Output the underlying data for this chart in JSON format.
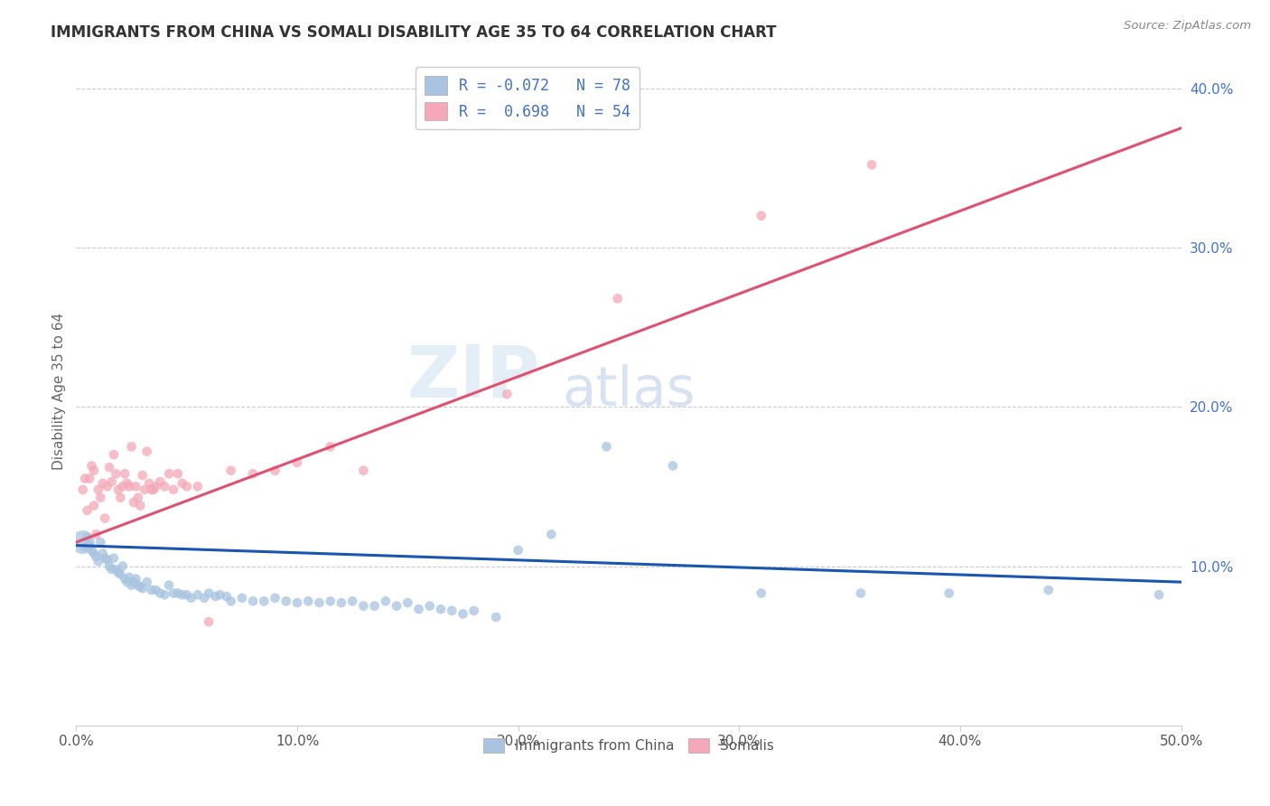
{
  "title": "IMMIGRANTS FROM CHINA VS SOMALI DISABILITY AGE 35 TO 64 CORRELATION CHART",
  "source": "Source: ZipAtlas.com",
  "ylabel": "Disability Age 35 to 64",
  "xlim": [
    0.0,
    0.5
  ],
  "ylim": [
    0.0,
    0.42
  ],
  "xticks": [
    0.0,
    0.1,
    0.2,
    0.3,
    0.4,
    0.5
  ],
  "xticklabels": [
    "0.0%",
    "10.0%",
    "20.0%",
    "30.0%",
    "40.0%",
    "50.0%"
  ],
  "yticks": [
    0.1,
    0.2,
    0.3,
    0.4
  ],
  "yticklabels": [
    "10.0%",
    "20.0%",
    "30.0%",
    "40.0%"
  ],
  "legend_R_china": "-0.072",
  "legend_N_china": "78",
  "legend_R_somali": "0.698",
  "legend_N_somali": "54",
  "china_color": "#a8c4e0",
  "somali_color": "#f4a8b8",
  "china_line_color": "#1a56b0",
  "somali_line_color": "#e05070",
  "watermark_zip": "ZIP",
  "watermark_atlas": "atlas",
  "china_line_x0": 0.0,
  "china_line_y0": 0.113,
  "china_line_x1": 0.5,
  "china_line_y1": 0.09,
  "somali_line_x0": 0.0,
  "somali_line_y0": 0.115,
  "somali_line_x1": 0.5,
  "somali_line_y1": 0.375,
  "china_x": [
    0.003,
    0.004,
    0.005,
    0.006,
    0.007,
    0.008,
    0.009,
    0.01,
    0.011,
    0.012,
    0.013,
    0.014,
    0.015,
    0.016,
    0.017,
    0.018,
    0.019,
    0.02,
    0.021,
    0.022,
    0.023,
    0.024,
    0.025,
    0.026,
    0.027,
    0.028,
    0.029,
    0.03,
    0.032,
    0.034,
    0.036,
    0.038,
    0.04,
    0.042,
    0.044,
    0.046,
    0.048,
    0.05,
    0.052,
    0.055,
    0.058,
    0.06,
    0.063,
    0.065,
    0.068,
    0.07,
    0.075,
    0.08,
    0.085,
    0.09,
    0.095,
    0.1,
    0.105,
    0.11,
    0.115,
    0.12,
    0.125,
    0.13,
    0.135,
    0.14,
    0.145,
    0.15,
    0.155,
    0.16,
    0.165,
    0.17,
    0.175,
    0.18,
    0.19,
    0.2,
    0.215,
    0.24,
    0.27,
    0.31,
    0.355,
    0.395,
    0.44,
    0.49
  ],
  "china_y": [
    0.115,
    0.112,
    0.118,
    0.113,
    0.11,
    0.108,
    0.106,
    0.103,
    0.115,
    0.108,
    0.105,
    0.104,
    0.1,
    0.098,
    0.105,
    0.098,
    0.096,
    0.095,
    0.1,
    0.092,
    0.09,
    0.093,
    0.088,
    0.09,
    0.092,
    0.088,
    0.087,
    0.086,
    0.09,
    0.085,
    0.085,
    0.083,
    0.082,
    0.088,
    0.083,
    0.083,
    0.082,
    0.082,
    0.08,
    0.082,
    0.08,
    0.083,
    0.081,
    0.082,
    0.081,
    0.078,
    0.08,
    0.078,
    0.078,
    0.08,
    0.078,
    0.077,
    0.078,
    0.077,
    0.078,
    0.077,
    0.078,
    0.075,
    0.075,
    0.078,
    0.075,
    0.077,
    0.073,
    0.075,
    0.073,
    0.072,
    0.07,
    0.072,
    0.068,
    0.11,
    0.12,
    0.175,
    0.163,
    0.083,
    0.083,
    0.083,
    0.085,
    0.082
  ],
  "china_sizes": [
    350,
    60,
    60,
    60,
    60,
    60,
    60,
    60,
    60,
    60,
    60,
    60,
    60,
    60,
    60,
    60,
    60,
    60,
    60,
    60,
    60,
    60,
    60,
    60,
    60,
    60,
    60,
    60,
    60,
    60,
    60,
    60,
    60,
    60,
    60,
    60,
    60,
    60,
    60,
    60,
    60,
    60,
    60,
    60,
    60,
    60,
    60,
    60,
    60,
    60,
    60,
    60,
    60,
    60,
    60,
    60,
    60,
    60,
    60,
    60,
    60,
    60,
    60,
    60,
    60,
    60,
    60,
    60,
    60,
    60,
    60,
    60,
    60,
    60,
    60,
    60,
    60,
    60
  ],
  "somali_x": [
    0.003,
    0.004,
    0.005,
    0.006,
    0.007,
    0.008,
    0.008,
    0.009,
    0.01,
    0.011,
    0.012,
    0.013,
    0.014,
    0.015,
    0.016,
    0.017,
    0.018,
    0.019,
    0.02,
    0.021,
    0.022,
    0.023,
    0.024,
    0.025,
    0.026,
    0.027,
    0.028,
    0.029,
    0.03,
    0.031,
    0.032,
    0.033,
    0.034,
    0.035,
    0.036,
    0.038,
    0.04,
    0.042,
    0.044,
    0.046,
    0.048,
    0.05,
    0.055,
    0.06,
    0.07,
    0.08,
    0.09,
    0.1,
    0.115,
    0.13,
    0.195,
    0.245,
    0.31,
    0.36
  ],
  "somali_y": [
    0.148,
    0.155,
    0.135,
    0.155,
    0.163,
    0.16,
    0.138,
    0.12,
    0.148,
    0.143,
    0.152,
    0.13,
    0.15,
    0.162,
    0.153,
    0.17,
    0.158,
    0.148,
    0.143,
    0.15,
    0.158,
    0.152,
    0.15,
    0.175,
    0.14,
    0.15,
    0.143,
    0.138,
    0.157,
    0.148,
    0.172,
    0.152,
    0.148,
    0.148,
    0.15,
    0.153,
    0.15,
    0.158,
    0.148,
    0.158,
    0.152,
    0.15,
    0.15,
    0.065,
    0.16,
    0.158,
    0.16,
    0.165,
    0.175,
    0.16,
    0.208,
    0.268,
    0.32,
    0.352
  ],
  "somali_sizes": [
    60,
    60,
    60,
    60,
    60,
    60,
    60,
    60,
    60,
    60,
    60,
    60,
    60,
    60,
    60,
    60,
    60,
    60,
    60,
    60,
    60,
    60,
    60,
    60,
    60,
    60,
    60,
    60,
    60,
    60,
    60,
    60,
    60,
    60,
    60,
    60,
    60,
    60,
    60,
    60,
    60,
    60,
    60,
    60,
    60,
    60,
    60,
    60,
    60,
    60,
    60,
    60,
    60,
    60
  ]
}
